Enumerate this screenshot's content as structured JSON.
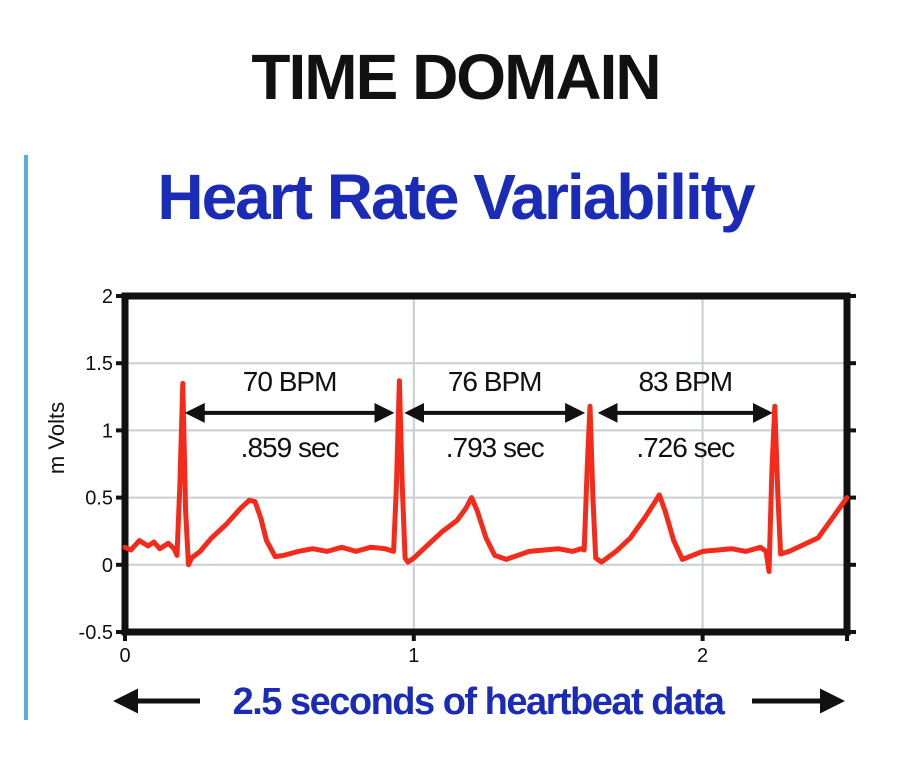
{
  "header": {
    "title": "TIME DOMAIN",
    "subtitle": "Heart Rate Variability"
  },
  "footer": {
    "caption": "2.5 seconds of heartbeat data"
  },
  "colors": {
    "trace": "#f52a1a",
    "subtitle": "#1a2bb8",
    "accent_bar": "#5aaee0",
    "grid": "#c8cfd4",
    "frame": "#111111"
  },
  "chart_data": {
    "type": "line",
    "title": "Heart Rate Variability",
    "xlabel": "",
    "ylabel": "m Volts",
    "xlim": [
      0,
      2.5
    ],
    "ylim": [
      -0.5,
      2
    ],
    "xticks": [
      0,
      1,
      2
    ],
    "yticks": [
      -0.5,
      0,
      0.5,
      1,
      1.5,
      2
    ],
    "ytick_labels": [
      "-0.5",
      "0",
      "0.5",
      "1",
      "1.5",
      "2"
    ],
    "grid": true,
    "series": [
      {
        "x": [
          0,
          0.02,
          0.05,
          0.08,
          0.1,
          0.12,
          0.15,
          0.17,
          0.18,
          0.19,
          0.2,
          0.21,
          0.22,
          0.23,
          0.26,
          0.3,
          0.35,
          0.4,
          0.43,
          0.45,
          0.47,
          0.49,
          0.52,
          0.55,
          0.6,
          0.65,
          0.7,
          0.75,
          0.8,
          0.85,
          0.9,
          0.93,
          0.94,
          0.95,
          0.96,
          0.97,
          0.98,
          1.0,
          1.05,
          1.1,
          1.15,
          1.18,
          1.2,
          1.22,
          1.25,
          1.28,
          1.32,
          1.4,
          1.5,
          1.55,
          1.58,
          1.59,
          1.6,
          1.61,
          1.62,
          1.63,
          1.65,
          1.7,
          1.75,
          1.8,
          1.83,
          1.85,
          1.87,
          1.9,
          1.93,
          2.0,
          2.1,
          2.15,
          2.2,
          2.22,
          2.23,
          2.24,
          2.25,
          2.26,
          2.27,
          2.3,
          2.4,
          2.45,
          2.5
        ],
        "y": [
          0.13,
          0.11,
          0.18,
          0.14,
          0.17,
          0.12,
          0.16,
          0.12,
          0.07,
          0.6,
          1.35,
          0.4,
          0.0,
          0.05,
          0.1,
          0.2,
          0.3,
          0.42,
          0.48,
          0.47,
          0.35,
          0.18,
          0.06,
          0.07,
          0.1,
          0.12,
          0.1,
          0.13,
          0.1,
          0.13,
          0.12,
          0.1,
          0.6,
          1.37,
          0.6,
          0.05,
          0.02,
          0.05,
          0.15,
          0.25,
          0.33,
          0.42,
          0.5,
          0.4,
          0.2,
          0.07,
          0.04,
          0.1,
          0.12,
          0.1,
          0.12,
          0.11,
          0.7,
          1.18,
          0.5,
          0.05,
          0.02,
          0.1,
          0.2,
          0.35,
          0.45,
          0.52,
          0.4,
          0.18,
          0.04,
          0.1,
          0.12,
          0.1,
          0.13,
          0.1,
          -0.05,
          0.7,
          1.18,
          0.55,
          0.08,
          0.1,
          0.2,
          0.35,
          0.5
        ]
      }
    ],
    "annotations": [
      {
        "x_start": 0.2,
        "x_end": 0.94,
        "bpm": "70 BPM",
        "interval": ".859 sec"
      },
      {
        "x_start": 0.96,
        "x_end": 1.6,
        "bpm": "76 BPM",
        "interval": ".793 sec"
      },
      {
        "x_start": 1.63,
        "x_end": 2.25,
        "bpm": "83 BPM",
        "interval": ".726 sec"
      }
    ]
  }
}
